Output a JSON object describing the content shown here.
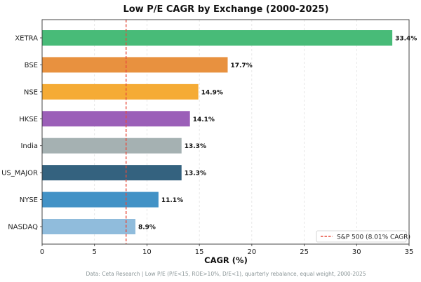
{
  "chart_data": {
    "type": "bar",
    "orientation": "horizontal",
    "title": "Low P/E CAGR by Exchange (2000-2025)",
    "xlabel": "CAGR (%)",
    "ylabel": "",
    "xlim": [
      0,
      35
    ],
    "xticks": [
      0,
      5,
      10,
      15,
      20,
      25,
      30,
      35
    ],
    "grid": "x-dashed",
    "categories": [
      "XETRA",
      "BSE",
      "NSE",
      "HKSE",
      "India",
      "US_MAJOR",
      "NYSE",
      "NASDAQ"
    ],
    "values": [
      33.4,
      17.7,
      14.9,
      14.1,
      13.3,
      13.3,
      11.1,
      8.9
    ],
    "data_labels": [
      "33.4%",
      "17.7%",
      "14.9%",
      "14.1%",
      "13.3%",
      "13.3%",
      "11.1%",
      "8.9%"
    ],
    "colors": [
      "#48bb78",
      "#e8913f",
      "#f5ab35",
      "#9b5fb8",
      "#a5b1b2",
      "#34627f",
      "#4292c6",
      "#90bcdc"
    ],
    "reference_line": {
      "value": 8.01,
      "label": "S&P 500 (8.01% CAGR)",
      "color": "#e74c3c",
      "style": "dashed"
    },
    "legend_position": "bottom-right",
    "footnote": "Data: Ceta Research | Low P/E (P/E<15, ROE>10%, D/E<1), quarterly rebalance, equal weight, 2000-2025"
  }
}
